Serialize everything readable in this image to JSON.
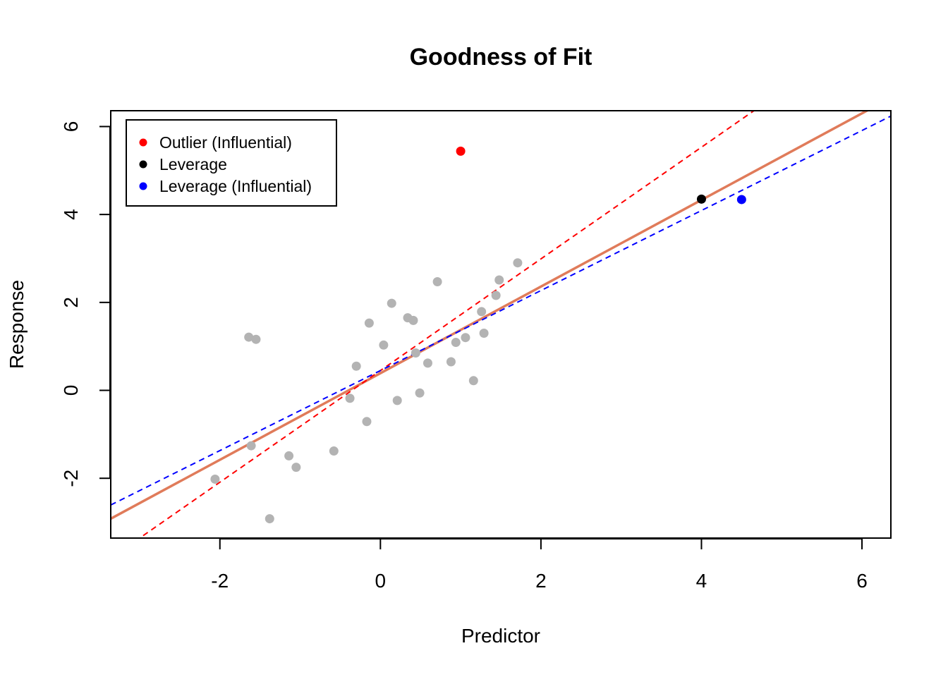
{
  "chart_data": {
    "type": "scatter",
    "title": "Goodness of Fit",
    "xlabel": "Predictor",
    "ylabel": "Response",
    "xlim": [
      -3.36,
      6.36
    ],
    "ylim": [
      -3.36,
      6.36
    ],
    "xticks": [
      -2,
      0,
      2,
      4,
      6
    ],
    "yticks": [
      -2,
      0,
      2,
      4,
      6
    ],
    "grid": false,
    "legend_position": "top-left",
    "legend": [
      {
        "label": "Outlier (Influential)",
        "color": "#ff0000"
      },
      {
        "label": "Leverage",
        "color": "#000000"
      },
      {
        "label": "Leverage (Influential)",
        "color": "#0000ff"
      }
    ],
    "base_points": {
      "color": "#b3b3b3",
      "x": [
        -2.06,
        -1.64,
        -1.55,
        -1.61,
        -1.38,
        -1.14,
        -1.05,
        -0.58,
        -0.38,
        -0.3,
        -0.17,
        -0.14,
        0.04,
        0.14,
        0.21,
        0.34,
        0.41,
        0.44,
        0.49,
        0.59,
        0.71,
        0.88,
        0.94,
        1.06,
        1.16,
        1.26,
        1.29,
        1.44,
        1.48,
        1.71
      ],
      "y": [
        -2.02,
        1.21,
        1.16,
        -1.26,
        -2.92,
        -1.49,
        -1.75,
        -1.38,
        -0.18,
        0.55,
        -0.71,
        1.53,
        1.03,
        1.98,
        -0.23,
        1.65,
        1.59,
        0.85,
        -0.06,
        0.62,
        2.47,
        0.65,
        1.09,
        1.2,
        0.22,
        1.79,
        1.3,
        2.16,
        2.51,
        2.9
      ]
    },
    "special_points": [
      {
        "name": "Outlier (Influential)",
        "x": 1.0,
        "y": 5.44,
        "color": "#ff0000"
      },
      {
        "name": "Leverage",
        "x": 4.0,
        "y": 4.35,
        "color": "#000000"
      },
      {
        "name": "Leverage (Influential)",
        "x": 4.5,
        "y": 4.34,
        "color": "#0000ff"
      }
    ],
    "fit_lines": [
      {
        "name": "Leverage",
        "intercept": 0.39,
        "slope": 0.985,
        "color": "#e07b5a",
        "style": "solid"
      },
      {
        "name": "Outlier (Influential)",
        "intercept": 0.45,
        "slope": 1.27,
        "color": "#ff0000",
        "style": "dashed"
      },
      {
        "name": "Leverage (Influential)",
        "intercept": 0.45,
        "slope": 0.91,
        "color": "#0000ff",
        "style": "dashed"
      }
    ]
  }
}
